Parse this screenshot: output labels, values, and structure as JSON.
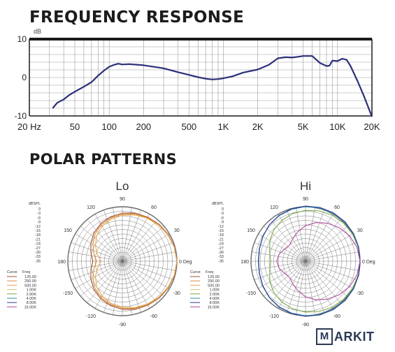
{
  "headings": {
    "frequency": "FREQUENCY RESPONSE",
    "polar": "POLAR PATTERNS"
  },
  "watermark": {
    "first": "M",
    "rest": "ARKIT"
  },
  "colors": {
    "fr_line": "#2a2f78",
    "grid": "#9a9a9a",
    "frame": "#1a1a1a",
    "text": "#222222"
  },
  "chart_data": [
    {
      "type": "line",
      "title": "FREQUENCY RESPONSE",
      "ylabel": "dB",
      "xscale": "log",
      "xlim": [
        20,
        20000
      ],
      "ylim": [
        -10,
        10
      ],
      "grid": true,
      "x_ticks": [
        20,
        50,
        100,
        200,
        500,
        1000,
        2000,
        5000,
        10000,
        20000
      ],
      "x_tick_labels": [
        "20 Hz",
        "50",
        "100",
        "200",
        "500",
        "1K",
        "2K",
        "5K",
        "10K",
        "20K"
      ],
      "y_ticks": [
        10,
        0,
        -10
      ],
      "y_tick_labels": [
        "10",
        "0",
        "-10"
      ],
      "series": [
        {
          "x": [
            32,
            35,
            40,
            45,
            50,
            60,
            70,
            80,
            90,
            100,
            110,
            120,
            130,
            150,
            200,
            300,
            400,
            500,
            600,
            700,
            800,
            900,
            1000,
            1200,
            1500,
            2000,
            2500,
            3000,
            3500,
            4000,
            4500,
            5000,
            6000,
            7000,
            8000,
            8500,
            9000,
            10000,
            11000,
            12000,
            13000,
            15000,
            17000,
            20000
          ],
          "y": [
            -8,
            -6.6,
            -5.7,
            -4.5,
            -3.7,
            -2.4,
            -1.2,
            0.5,
            1.8,
            2.8,
            3.3,
            3.6,
            3.4,
            3.5,
            3.2,
            2.4,
            1.4,
            0.7,
            0.1,
            -0.3,
            -0.5,
            -0.4,
            -0.2,
            0.3,
            1.3,
            2.1,
            3.3,
            5.0,
            5.3,
            5.2,
            5.4,
            5.6,
            5.6,
            3.8,
            3.0,
            3.1,
            4.4,
            4.3,
            4.9,
            4.6,
            3.0,
            -1.0,
            -4.8,
            -10.2
          ]
        }
      ]
    },
    {
      "type": "polar",
      "title": "Lo",
      "angle_labels": [
        "0 Deg",
        "30",
        "60",
        "90",
        "120",
        "150",
        "180",
        "-150",
        "-120",
        "-90",
        "-60",
        "-30"
      ],
      "radial_unit": "dBSPL",
      "radial_labels": [
        "0",
        "-3",
        "-6",
        "-9",
        "-12",
        "-15",
        "-18",
        "-21",
        "-24",
        "-27",
        "-30",
        "-33",
        "-36"
      ],
      "legend_header": [
        "Curve",
        "Freq"
      ],
      "series": [
        {
          "name": "125.00",
          "color": "#a0522d",
          "values": [
            0,
            -0.3,
            -0.8,
            -1.6,
            -2.4,
            -3.1,
            -4.2,
            -5.6,
            -7.4,
            -9.5,
            -12,
            -14.5,
            -16.5
          ]
        },
        {
          "name": "250.00",
          "color": "#d98c3a",
          "values": [
            0,
            -0.4,
            -1.0,
            -1.9,
            -2.8,
            -3.7,
            -4.9,
            -6.4,
            -8.2,
            -10.5,
            -13.5,
            -16.5,
            -19
          ]
        },
        {
          "name": "500.00",
          "color": "#e8a850",
          "values": [
            0,
            -0.5,
            -1.3,
            -2.2,
            -3.2,
            -4.3,
            -5.6,
            -7.2,
            -9.4,
            -12,
            -15.5,
            -19,
            -22
          ]
        },
        {
          "name": "1.00K",
          "color": "#d9c06a",
          "values": []
        },
        {
          "name": "2.00K",
          "color": "#7aa84a",
          "values": []
        },
        {
          "name": "4.00K",
          "color": "#2e8fb5",
          "values": []
        },
        {
          "name": "8.00K",
          "color": "#2f3f8f",
          "values": []
        },
        {
          "name": "16.00K",
          "color": "#b04aa0",
          "values": []
        }
      ]
    },
    {
      "type": "polar",
      "title": "Hi",
      "angle_labels": [
        "0 Deg",
        "30",
        "60",
        "90",
        "120",
        "150",
        "180",
        "-150",
        "-120",
        "-90",
        "-60",
        "-30"
      ],
      "radial_unit": "dBSPL",
      "radial_labels": [
        "0",
        "-3",
        "-6",
        "-9",
        "-12",
        "-15",
        "-18",
        "-21",
        "-24",
        "-27",
        "-30",
        "-33",
        "-36"
      ],
      "legend_header": [
        "Curve",
        "Freq"
      ],
      "series": [
        {
          "name": "125.00",
          "color": "#a0522d",
          "values": []
        },
        {
          "name": "250.00",
          "color": "#d98c3a",
          "values": []
        },
        {
          "name": "500.00",
          "color": "#e8a850",
          "values": []
        },
        {
          "name": "1.00K",
          "color": "#d9c06a",
          "values": []
        },
        {
          "name": "2.00K",
          "color": "#7aa84a",
          "values": [
            0,
            0,
            -0.2,
            -0.4,
            -0.8,
            -1.6,
            -2.4,
            -3.4,
            -4.8,
            -6.5,
            -8.8,
            -11.5,
            -13
          ]
        },
        {
          "name": "4.00K",
          "color": "#2e8fb5",
          "values": [
            0,
            0.2,
            0.4,
            0.6,
            0.6,
            0.4,
            0.1,
            -0.5,
            -1.2,
            -2.2,
            -3.5,
            -4.6,
            -5
          ]
        },
        {
          "name": "8.00K",
          "color": "#2f3f8f",
          "values": [
            0,
            0.3,
            0.6,
            0.9,
            0.9,
            0.8,
            0.4,
            -0.2,
            -1.0,
            -2.1,
            -3.4,
            -4.4,
            -4.8
          ]
        },
        {
          "name": "16.00K",
          "color": "#b04aa0",
          "values": [
            0,
            -0.8,
            -2.4,
            -4.6,
            -7,
            -9.6,
            -12.5,
            -16,
            -19,
            -21,
            -20,
            -18,
            -17
          ]
        }
      ]
    }
  ]
}
